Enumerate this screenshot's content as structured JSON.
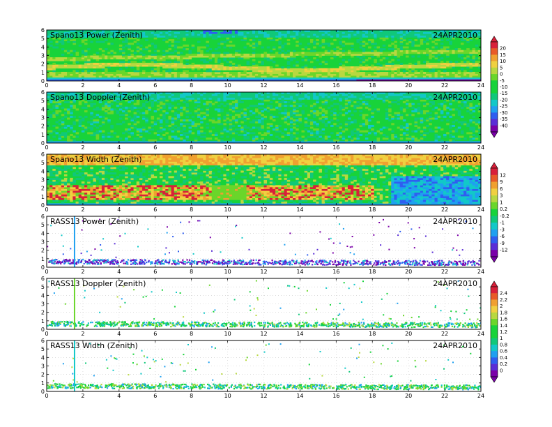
{
  "figure": {
    "date": "24APR2010",
    "x_ticks": [
      "0",
      "2",
      "4",
      "6",
      "8",
      "10",
      "12",
      "14",
      "16",
      "18",
      "20",
      "22",
      "24"
    ],
    "y_ticks": [
      "0",
      "1",
      "2",
      "3",
      "4",
      "5",
      "6"
    ]
  },
  "panels": [
    {
      "title": "Spano13 Power (Zenith)",
      "kind": "power"
    },
    {
      "title": "Spano13 Doppler (Zenith)",
      "kind": "doppler"
    },
    {
      "title": "Spano13 Width (Zenith)",
      "kind": "width"
    },
    {
      "title": "RASS13 Power (Zenith)",
      "kind": "rass_power"
    },
    {
      "title": "RASS13 Doppler (Zenith)",
      "kind": "rass_doppler"
    },
    {
      "title": "RASS13 Width (Zenith)",
      "kind": "rass_width"
    }
  ],
  "colorbars": [
    {
      "labels": [
        "20",
        "15",
        "10",
        "5",
        "0",
        "-5",
        "-10",
        "-15",
        "-20",
        "-25",
        "-30",
        "-35",
        "-40"
      ]
    },
    {
      "labels": [
        "12",
        "9",
        "6",
        "3",
        "1",
        "0.2",
        "-0.2",
        "-1",
        "-3",
        "-6",
        "-9",
        "-12"
      ]
    },
    {
      "labels": [
        "2.4",
        "2.2",
        "2",
        "1.8",
        "1.6",
        "1.4",
        "1.2",
        "1",
        "0.8",
        "0.6",
        "0.4",
        "0.2",
        "0"
      ]
    }
  ],
  "colors": [
    "#7a00a8",
    "#5a2dd6",
    "#2f5ef0",
    "#1fa0f0",
    "#12c8c8",
    "#10c87a",
    "#18d33a",
    "#6ad62a",
    "#b8d840",
    "#f0d040",
    "#f0a030",
    "#e85a28",
    "#d8203a"
  ],
  "chart_data": [
    {
      "type": "heatmap",
      "title": "Spano13 Power (Zenith)",
      "date": "24APR2010",
      "xlim": [
        0,
        24
      ],
      "ylim": [
        0,
        6
      ],
      "x_ticks": [
        0,
        2,
        4,
        6,
        8,
        10,
        12,
        14,
        16,
        18,
        20,
        22,
        24
      ],
      "y_ticks": [
        0,
        1,
        2,
        3,
        4,
        5,
        6
      ],
      "colorbar": [
        20,
        15,
        10,
        5,
        0,
        -5,
        -10,
        -15,
        -20,
        -25,
        -30,
        -35,
        -40
      ]
    },
    {
      "type": "heatmap",
      "title": "Spano13 Doppler (Zenith)",
      "date": "24APR2010",
      "xlim": [
        0,
        24
      ],
      "ylim": [
        0,
        6
      ],
      "x_ticks": [
        0,
        2,
        4,
        6,
        8,
        10,
        12,
        14,
        16,
        18,
        20,
        22,
        24
      ],
      "y_ticks": [
        0,
        1,
        2,
        3,
        4,
        5,
        6
      ]
    },
    {
      "type": "heatmap",
      "title": "Spano13 Width (Zenith)",
      "date": "24APR2010",
      "xlim": [
        0,
        24
      ],
      "ylim": [
        0,
        6
      ],
      "x_ticks": [
        0,
        2,
        4,
        6,
        8,
        10,
        12,
        14,
        16,
        18,
        20,
        22,
        24
      ],
      "y_ticks": [
        0,
        1,
        2,
        3,
        4,
        5,
        6
      ],
      "colorbar": [
        12,
        9,
        6,
        3,
        1,
        0.2,
        -0.2,
        -1,
        -3,
        -6,
        -9,
        -12
      ]
    },
    {
      "type": "scatter",
      "title": "RASS13 Power (Zenith)",
      "date": "24APR2010",
      "xlim": [
        0,
        24
      ],
      "ylim": [
        0,
        6
      ],
      "x_ticks": [
        0,
        2,
        4,
        6,
        8,
        10,
        12,
        14,
        16,
        18,
        20,
        22,
        24
      ],
      "y_ticks": [
        0,
        1,
        2,
        3,
        4,
        5,
        6
      ]
    },
    {
      "type": "scatter",
      "title": "RASS13 Doppler (Zenith)",
      "date": "24APR2010",
      "xlim": [
        0,
        24
      ],
      "ylim": [
        0,
        6
      ],
      "x_ticks": [
        0,
        2,
        4,
        6,
        8,
        10,
        12,
        14,
        16,
        18,
        20,
        22,
        24
      ],
      "y_ticks": [
        0,
        1,
        2,
        3,
        4,
        5,
        6
      ],
      "colorbar": [
        2.4,
        2.2,
        2,
        1.8,
        1.6,
        1.4,
        1.2,
        1,
        0.8,
        0.6,
        0.4,
        0.2,
        0
      ]
    },
    {
      "type": "scatter",
      "title": "RASS13 Width (Zenith)",
      "date": "24APR2010",
      "xlim": [
        0,
        24
      ],
      "ylim": [
        0,
        6
      ],
      "x_ticks": [
        0,
        2,
        4,
        6,
        8,
        10,
        12,
        14,
        16,
        18,
        20,
        22,
        24
      ],
      "y_ticks": [
        0,
        1,
        2,
        3,
        4,
        5,
        6
      ]
    }
  ]
}
